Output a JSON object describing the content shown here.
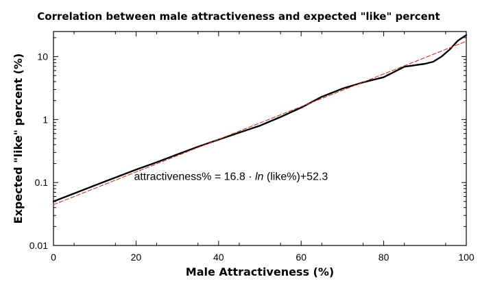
{
  "chart_data": {
    "type": "line",
    "title": "Correlation between male attractiveness and expected \"like\" percent",
    "xlabel": "Male Attractiveness (%)",
    "ylabel": "Expected \"like\" percent (%)",
    "xlim": [
      0,
      100
    ],
    "ylim": [
      0.01,
      25
    ],
    "y_scale": "log",
    "x_ticks": [
      0,
      20,
      40,
      60,
      80,
      100
    ],
    "x_tick_labels": [
      "0",
      "20",
      "40",
      "60",
      "80",
      "100"
    ],
    "y_ticks": [
      0.01,
      0.1,
      1,
      10
    ],
    "y_tick_labels": [
      "0.01",
      "0.1",
      "1",
      "10"
    ],
    "grid": false,
    "series": [
      {
        "color": "#000000",
        "style": "solid",
        "x": [
          0,
          5,
          10,
          15,
          20,
          25,
          30,
          35,
          40,
          45,
          50,
          55,
          60,
          65,
          70,
          75,
          80,
          85,
          90,
          92,
          94,
          96,
          98,
          100
        ],
        "y": [
          0.05,
          0.067,
          0.09,
          0.12,
          0.16,
          0.21,
          0.28,
          0.37,
          0.48,
          0.62,
          0.8,
          1.1,
          1.55,
          2.3,
          3.1,
          3.9,
          4.7,
          6.9,
          7.7,
          8.3,
          10,
          13,
          18,
          22
        ]
      },
      {
        "color": "#c0392b",
        "style": "dashed",
        "x": [
          0,
          100
        ],
        "y": [
          0.0445,
          17.5
        ]
      }
    ],
    "annotations": [
      {
        "text_before": "attractiveness% = 16.8 · ",
        "text_italic": "ln",
        "text_after": " (like%)+52.3",
        "x": 43,
        "y": 0.11
      }
    ]
  }
}
